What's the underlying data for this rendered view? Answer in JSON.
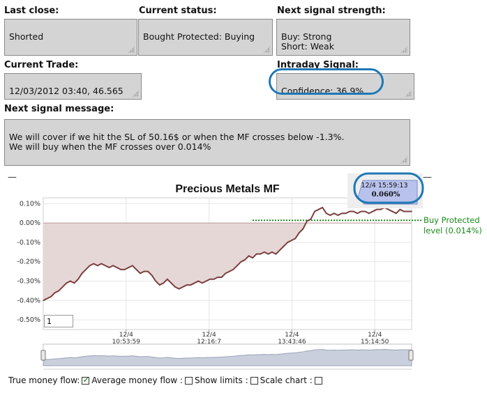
{
  "fields": {
    "last_close": {
      "label": "Last close:",
      "value": "Shorted"
    },
    "current_status": {
      "label": "Current status:",
      "value": "Bought Protected: Buying"
    },
    "next_signal_strength": {
      "label": "Next signal strength:",
      "value": "Buy: Strong\nShort: Weak"
    },
    "current_trade": {
      "label": "Current Trade:",
      "value": "12/03/2012 03:40, 46.565"
    },
    "intraday_signal": {
      "label": "Intraday Signal:",
      "value": "Confidence: 36.9%"
    },
    "next_signal_message": {
      "label": "Next signal message:",
      "value": "We will cover if we hit the SL of 50.16$ or when the MF crosses below -1.3%.\nWe will buy when the MF crosses over 0.014%"
    }
  },
  "chart": {
    "collapse_left": "—",
    "collapse_right": "—",
    "tooltip_time": "12/4 15:59:13",
    "tooltip_value": "0.060%",
    "annotation_line1": "Buy Protected",
    "annotation_line2": "level (0.014%)",
    "zoom_input_value": "1"
  },
  "chart_data": {
    "type": "area",
    "title": "Precious Metals MF",
    "xlabel": "",
    "ylabel": "",
    "ylim": [
      -0.55,
      0.13
    ],
    "yticks": [
      "0.10%",
      "0.00%",
      "-0.10%",
      "-0.20%",
      "-0.30%",
      "-0.40%",
      "-0.50%"
    ],
    "ytick_values": [
      0.1,
      0.0,
      -0.1,
      -0.2,
      -0.3,
      -0.4,
      -0.5
    ],
    "xticks": [
      {
        "date": "12/4",
        "time": "10:53:59"
      },
      {
        "date": "12/4",
        "time": "12:16:7"
      },
      {
        "date": "12/4",
        "time": "13:43:46"
      },
      {
        "date": "12/4",
        "time": "15:14:50"
      }
    ],
    "threshold": 0.014,
    "series": [
      {
        "color": "#7b3f3f",
        "values": [
          -0.4,
          -0.39,
          -0.38,
          -0.36,
          -0.35,
          -0.33,
          -0.31,
          -0.3,
          -0.31,
          -0.29,
          -0.26,
          -0.24,
          -0.22,
          -0.21,
          -0.22,
          -0.21,
          -0.22,
          -0.23,
          -0.22,
          -0.23,
          -0.24,
          -0.24,
          -0.23,
          -0.22,
          -0.24,
          -0.26,
          -0.25,
          -0.25,
          -0.27,
          -0.3,
          -0.32,
          -0.31,
          -0.29,
          -0.31,
          -0.33,
          -0.34,
          -0.33,
          -0.32,
          -0.32,
          -0.31,
          -0.3,
          -0.31,
          -0.3,
          -0.29,
          -0.29,
          -0.28,
          -0.28,
          -0.26,
          -0.25,
          -0.24,
          -0.22,
          -0.2,
          -0.19,
          -0.17,
          -0.18,
          -0.16,
          -0.16,
          -0.15,
          -0.16,
          -0.15,
          -0.16,
          -0.14,
          -0.12,
          -0.1,
          -0.09,
          -0.08,
          -0.05,
          -0.03,
          0.01,
          0.02,
          0.06,
          0.07,
          0.08,
          0.05,
          0.04,
          0.05,
          0.04,
          0.05,
          0.05,
          0.06,
          0.06,
          0.05,
          0.06,
          0.06,
          0.05,
          0.06,
          0.07,
          0.07,
          0.08,
          0.07,
          0.06,
          0.05,
          0.07,
          0.06,
          0.06,
          0.06
        ],
        "fill": "#e6d7d7"
      }
    ],
    "navigator_color": "#9aa3b8",
    "grid": true,
    "legend": "none"
  },
  "options": {
    "true_money_flow": {
      "label": "True money flow:",
      "checked": true
    },
    "average_money_flow": {
      "label": "Average money flow :",
      "checked": false
    },
    "show_limits": {
      "label": "Show limits :",
      "checked": false
    },
    "scale_chart": {
      "label": "Scale chart :",
      "checked": false
    }
  },
  "colors": {
    "accent_oval": "#1f78b4",
    "threshold": "#1a8a1a",
    "line": "#7b3f3f"
  }
}
